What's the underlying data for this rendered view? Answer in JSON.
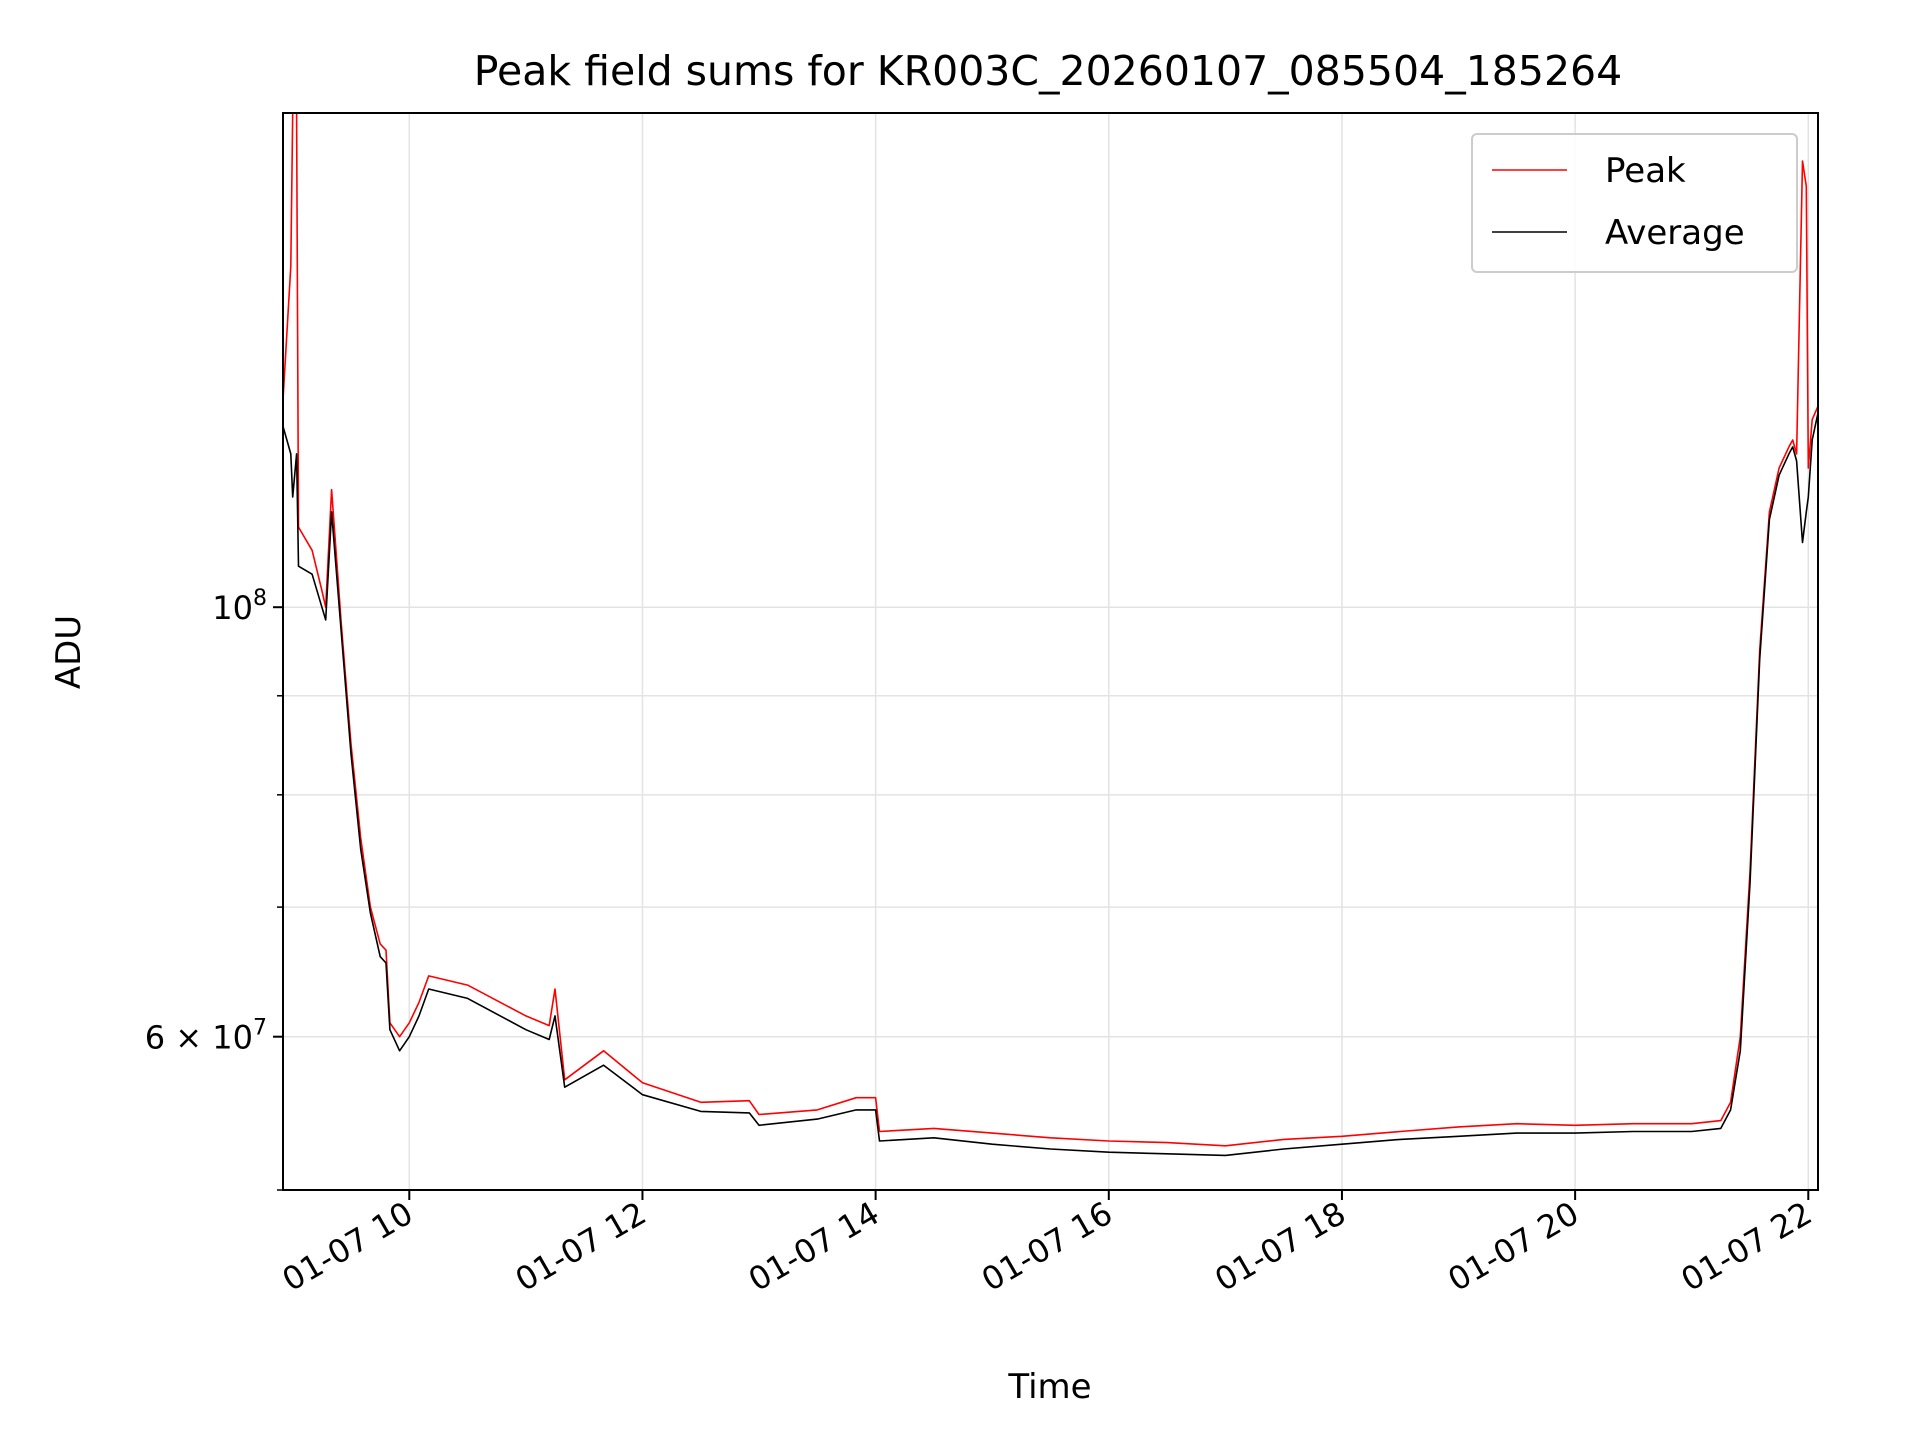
{
  "chart_data": {
    "type": "line",
    "title": "Peak field sums for KR003C_20260107_085504_185264",
    "xlabel": "Time",
    "ylabel": "ADU",
    "y_scale": "log",
    "grid": true,
    "legend_position": "top-right",
    "xlim": [
      "2026-01-07 08:55",
      "2026-01-07 22:05"
    ],
    "ylim": [
      50000000,
      180000000
    ],
    "x_ticks": [
      "01-07 10",
      "01-07 12",
      "01-07 14",
      "01-07 16",
      "01-07 18",
      "01-07 20",
      "01-07 22"
    ],
    "x_tick_times": [
      "2026-01-07 10:00",
      "2026-01-07 12:00",
      "2026-01-07 14:00",
      "2026-01-07 16:00",
      "2026-01-07 18:00",
      "2026-01-07 20:00",
      "2026-01-07 22:00"
    ],
    "y_tick_labels": [
      {
        "value": 100000000,
        "mantissa": "",
        "base": "10",
        "exp": "8"
      },
      {
        "value": 60000000,
        "mantissa": "6 × ",
        "base": "10",
        "exp": "7"
      }
    ],
    "y_minor_ticks": [
      50000000,
      70000000,
      80000000,
      90000000
    ],
    "series": [
      {
        "name": "Peak",
        "color": "#ff0000",
        "points": [
          [
            "2026-01-07 08:55",
            128000000
          ],
          [
            "2026-01-07 08:59",
            150000000
          ],
          [
            "2026-01-07 09:00",
            180000000
          ],
          [
            "2026-01-07 09:02",
            180000000
          ],
          [
            "2026-01-07 09:03",
            110000000
          ],
          [
            "2026-01-07 09:10",
            107000000
          ],
          [
            "2026-01-07 09:15",
            102000000
          ],
          [
            "2026-01-07 09:17",
            100000000
          ],
          [
            "2026-01-07 09:20",
            115000000
          ],
          [
            "2026-01-07 09:25",
            98000000
          ],
          [
            "2026-01-07 09:30",
            85000000
          ],
          [
            "2026-01-07 09:35",
            76000000
          ],
          [
            "2026-01-07 09:40",
            70000000
          ],
          [
            "2026-01-07 09:45",
            67000000
          ],
          [
            "2026-01-07 09:48",
            66500000
          ],
          [
            "2026-01-07 09:50",
            61000000
          ],
          [
            "2026-01-07 09:55",
            60000000
          ],
          [
            "2026-01-07 10:00",
            61000000
          ],
          [
            "2026-01-07 10:05",
            62500000
          ],
          [
            "2026-01-07 10:10",
            64500000
          ],
          [
            "2026-01-07 10:30",
            63800000
          ],
          [
            "2026-01-07 11:00",
            61500000
          ],
          [
            "2026-01-07 11:12",
            60800000
          ],
          [
            "2026-01-07 11:15",
            63500000
          ],
          [
            "2026-01-07 11:20",
            57000000
          ],
          [
            "2026-01-07 11:40",
            59000000
          ],
          [
            "2026-01-07 12:00",
            56800000
          ],
          [
            "2026-01-07 12:30",
            55500000
          ],
          [
            "2026-01-07 12:55",
            55600000
          ],
          [
            "2026-01-07 13:00",
            54700000
          ],
          [
            "2026-01-07 13:30",
            55000000
          ],
          [
            "2026-01-07 13:50",
            55800000
          ],
          [
            "2026-01-07 14:00",
            55800000
          ],
          [
            "2026-01-07 14:02",
            53600000
          ],
          [
            "2026-01-07 14:30",
            53800000
          ],
          [
            "2026-01-07 15:00",
            53500000
          ],
          [
            "2026-01-07 15:30",
            53200000
          ],
          [
            "2026-01-07 16:00",
            53000000
          ],
          [
            "2026-01-07 16:30",
            52900000
          ],
          [
            "2026-01-07 17:00",
            52700000
          ],
          [
            "2026-01-07 17:30",
            53100000
          ],
          [
            "2026-01-07 18:00",
            53300000
          ],
          [
            "2026-01-07 18:30",
            53600000
          ],
          [
            "2026-01-07 19:00",
            53900000
          ],
          [
            "2026-01-07 19:30",
            54100000
          ],
          [
            "2026-01-07 20:00",
            54000000
          ],
          [
            "2026-01-07 20:30",
            54100000
          ],
          [
            "2026-01-07 21:00",
            54100000
          ],
          [
            "2026-01-07 21:15",
            54300000
          ],
          [
            "2026-01-07 21:20",
            55500000
          ],
          [
            "2026-01-07 21:25",
            60000000
          ],
          [
            "2026-01-07 21:30",
            73000000
          ],
          [
            "2026-01-07 21:35",
            95000000
          ],
          [
            "2026-01-07 21:40",
            112000000
          ],
          [
            "2026-01-07 21:45",
            118000000
          ],
          [
            "2026-01-07 21:50",
            121000000
          ],
          [
            "2026-01-07 21:52",
            122000000
          ],
          [
            "2026-01-07 21:54",
            120000000
          ],
          [
            "2026-01-07 21:57",
            170000000
          ],
          [
            "2026-01-07 21:59",
            165000000
          ],
          [
            "2026-01-07 22:00",
            118000000
          ],
          [
            "2026-01-07 22:02",
            125000000
          ],
          [
            "2026-01-07 22:05",
            127000000
          ]
        ]
      },
      {
        "name": "Average",
        "color": "#000000",
        "points": [
          [
            "2026-01-07 08:55",
            124000000
          ],
          [
            "2026-01-07 08:59",
            120000000
          ],
          [
            "2026-01-07 09:00",
            114000000
          ],
          [
            "2026-01-07 09:02",
            120000000
          ],
          [
            "2026-01-07 09:03",
            105000000
          ],
          [
            "2026-01-07 09:10",
            104000000
          ],
          [
            "2026-01-07 09:15",
            100000000
          ],
          [
            "2026-01-07 09:17",
            98500000
          ],
          [
            "2026-01-07 09:20",
            112000000
          ],
          [
            "2026-01-07 09:25",
            97000000
          ],
          [
            "2026-01-07 09:30",
            84000000
          ],
          [
            "2026-01-07 09:35",
            75000000
          ],
          [
            "2026-01-07 09:40",
            69500000
          ],
          [
            "2026-01-07 09:45",
            66000000
          ],
          [
            "2026-01-07 09:48",
            65500000
          ],
          [
            "2026-01-07 09:50",
            60500000
          ],
          [
            "2026-01-07 09:55",
            59000000
          ],
          [
            "2026-01-07 10:00",
            60000000
          ],
          [
            "2026-01-07 10:05",
            61500000
          ],
          [
            "2026-01-07 10:10",
            63500000
          ],
          [
            "2026-01-07 10:30",
            62800000
          ],
          [
            "2026-01-07 11:00",
            60500000
          ],
          [
            "2026-01-07 11:12",
            59800000
          ],
          [
            "2026-01-07 11:15",
            61500000
          ],
          [
            "2026-01-07 11:20",
            56500000
          ],
          [
            "2026-01-07 11:40",
            58000000
          ],
          [
            "2026-01-07 12:00",
            56000000
          ],
          [
            "2026-01-07 12:30",
            54900000
          ],
          [
            "2026-01-07 12:55",
            54800000
          ],
          [
            "2026-01-07 13:00",
            54000000
          ],
          [
            "2026-01-07 13:30",
            54400000
          ],
          [
            "2026-01-07 13:50",
            55000000
          ],
          [
            "2026-01-07 14:00",
            55000000
          ],
          [
            "2026-01-07 14:02",
            53000000
          ],
          [
            "2026-01-07 14:30",
            53200000
          ],
          [
            "2026-01-07 15:00",
            52800000
          ],
          [
            "2026-01-07 15:30",
            52500000
          ],
          [
            "2026-01-07 16:00",
            52300000
          ],
          [
            "2026-01-07 16:30",
            52200000
          ],
          [
            "2026-01-07 17:00",
            52100000
          ],
          [
            "2026-01-07 17:30",
            52500000
          ],
          [
            "2026-01-07 18:00",
            52800000
          ],
          [
            "2026-01-07 18:30",
            53100000
          ],
          [
            "2026-01-07 19:00",
            53300000
          ],
          [
            "2026-01-07 19:30",
            53500000
          ],
          [
            "2026-01-07 20:00",
            53500000
          ],
          [
            "2026-01-07 20:30",
            53600000
          ],
          [
            "2026-01-07 21:00",
            53600000
          ],
          [
            "2026-01-07 21:15",
            53800000
          ],
          [
            "2026-01-07 21:20",
            55000000
          ],
          [
            "2026-01-07 21:25",
            59000000
          ],
          [
            "2026-01-07 21:30",
            72000000
          ],
          [
            "2026-01-07 21:35",
            94000000
          ],
          [
            "2026-01-07 21:40",
            111000000
          ],
          [
            "2026-01-07 21:45",
            117000000
          ],
          [
            "2026-01-07 21:50",
            120000000
          ],
          [
            "2026-01-07 21:52",
            121000000
          ],
          [
            "2026-01-07 21:54",
            119000000
          ],
          [
            "2026-01-07 21:57",
            108000000
          ],
          [
            "2026-01-07 21:59",
            112000000
          ],
          [
            "2026-01-07 22:00",
            114000000
          ],
          [
            "2026-01-07 22:02",
            122000000
          ],
          [
            "2026-01-07 22:05",
            126000000
          ]
        ]
      }
    ]
  }
}
